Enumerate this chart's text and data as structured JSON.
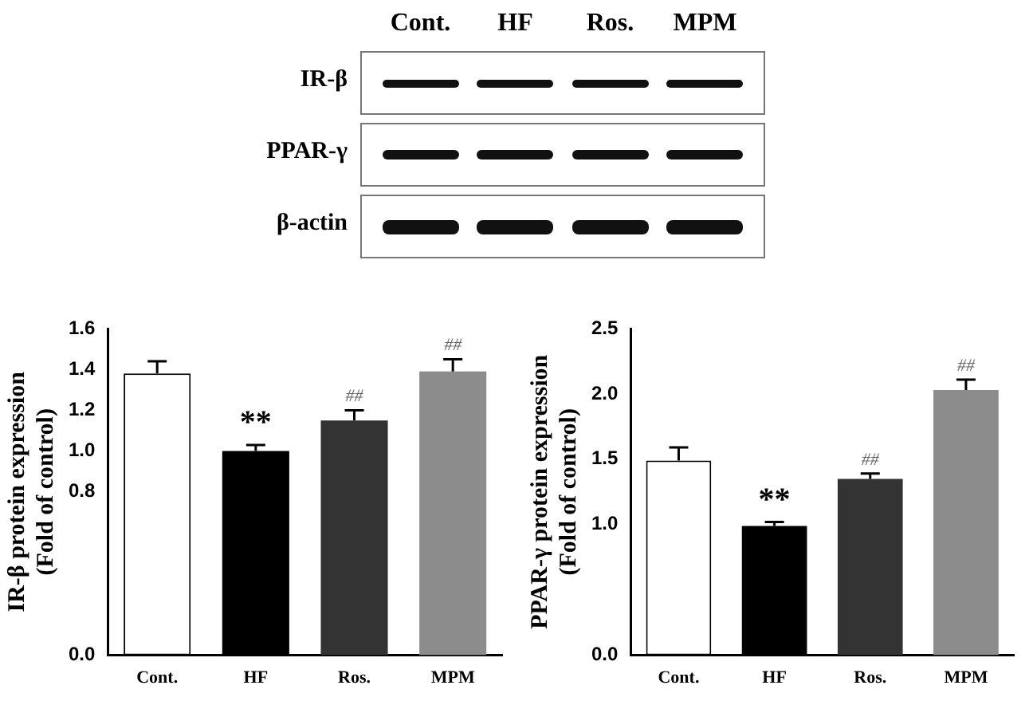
{
  "chart_data": [
    {
      "type": "other",
      "categories": [
        "Cont.",
        "HF",
        "Ros.",
        "MPM"
      ],
      "annotations": [
        "IR-β",
        "PPAR-γ",
        "β-actin"
      ]
    },
    {
      "type": "bar",
      "ylabel": "IR-β protein expression\n(Fold of control)",
      "categories": [
        "Cont.",
        "HF",
        "Ros.",
        "MPM"
      ],
      "values": [
        1.38,
        1.0,
        1.15,
        1.39
      ],
      "errors": [
        0.06,
        0.03,
        0.05,
        0.06
      ],
      "colors": [
        "#ffffff",
        "#000000",
        "#333333",
        "#8c8c8c"
      ],
      "ylim": [
        0,
        1.6
      ],
      "yticks": [
        {
          "value": 0,
          "label": "0.0"
        },
        {
          "value": 0.8,
          "label": "0.8"
        },
        {
          "value": 1.0,
          "label": "1.0"
        },
        {
          "value": 1.2,
          "label": "1.2"
        },
        {
          "value": 1.4,
          "label": "1.4"
        },
        {
          "value": 1.6,
          "label": "1.6"
        }
      ],
      "grid": false,
      "legend": false,
      "annotations": [
        {
          "text": "**",
          "x": "HF",
          "y": 1.03
        },
        {
          "text": "##",
          "x": "Ros.",
          "y": 1.2
        },
        {
          "text": "##",
          "x": "MPM",
          "y": 1.45
        }
      ]
    },
    {
      "type": "bar",
      "ylabel": "PPAR-γ protein expression\n(Fold of control)",
      "categories": [
        "Cont.",
        "HF",
        "Ros.",
        "MPM"
      ],
      "values": [
        1.49,
        0.99,
        1.35,
        2.03
      ],
      "errors": [
        0.1,
        0.03,
        0.04,
        0.08
      ],
      "colors": [
        "#ffffff",
        "#000000",
        "#333333",
        "#8c8c8c"
      ],
      "ylim": [
        0,
        2.5
      ],
      "yticks": [
        {
          "value": 0,
          "label": "0.0"
        },
        {
          "value": 1.0,
          "label": "1.0"
        },
        {
          "value": 1.5,
          "label": "1.5"
        },
        {
          "value": 2.0,
          "label": "2.0"
        },
        {
          "value": 2.5,
          "label": "2.5"
        }
      ],
      "grid": false,
      "legend": false,
      "annotations": [
        {
          "text": "**",
          "x": "HF",
          "y": 1.02
        },
        {
          "text": "##",
          "x": "Ros.",
          "y": 1.39
        },
        {
          "text": "##",
          "x": "MPM",
          "y": 2.11
        }
      ]
    }
  ]
}
